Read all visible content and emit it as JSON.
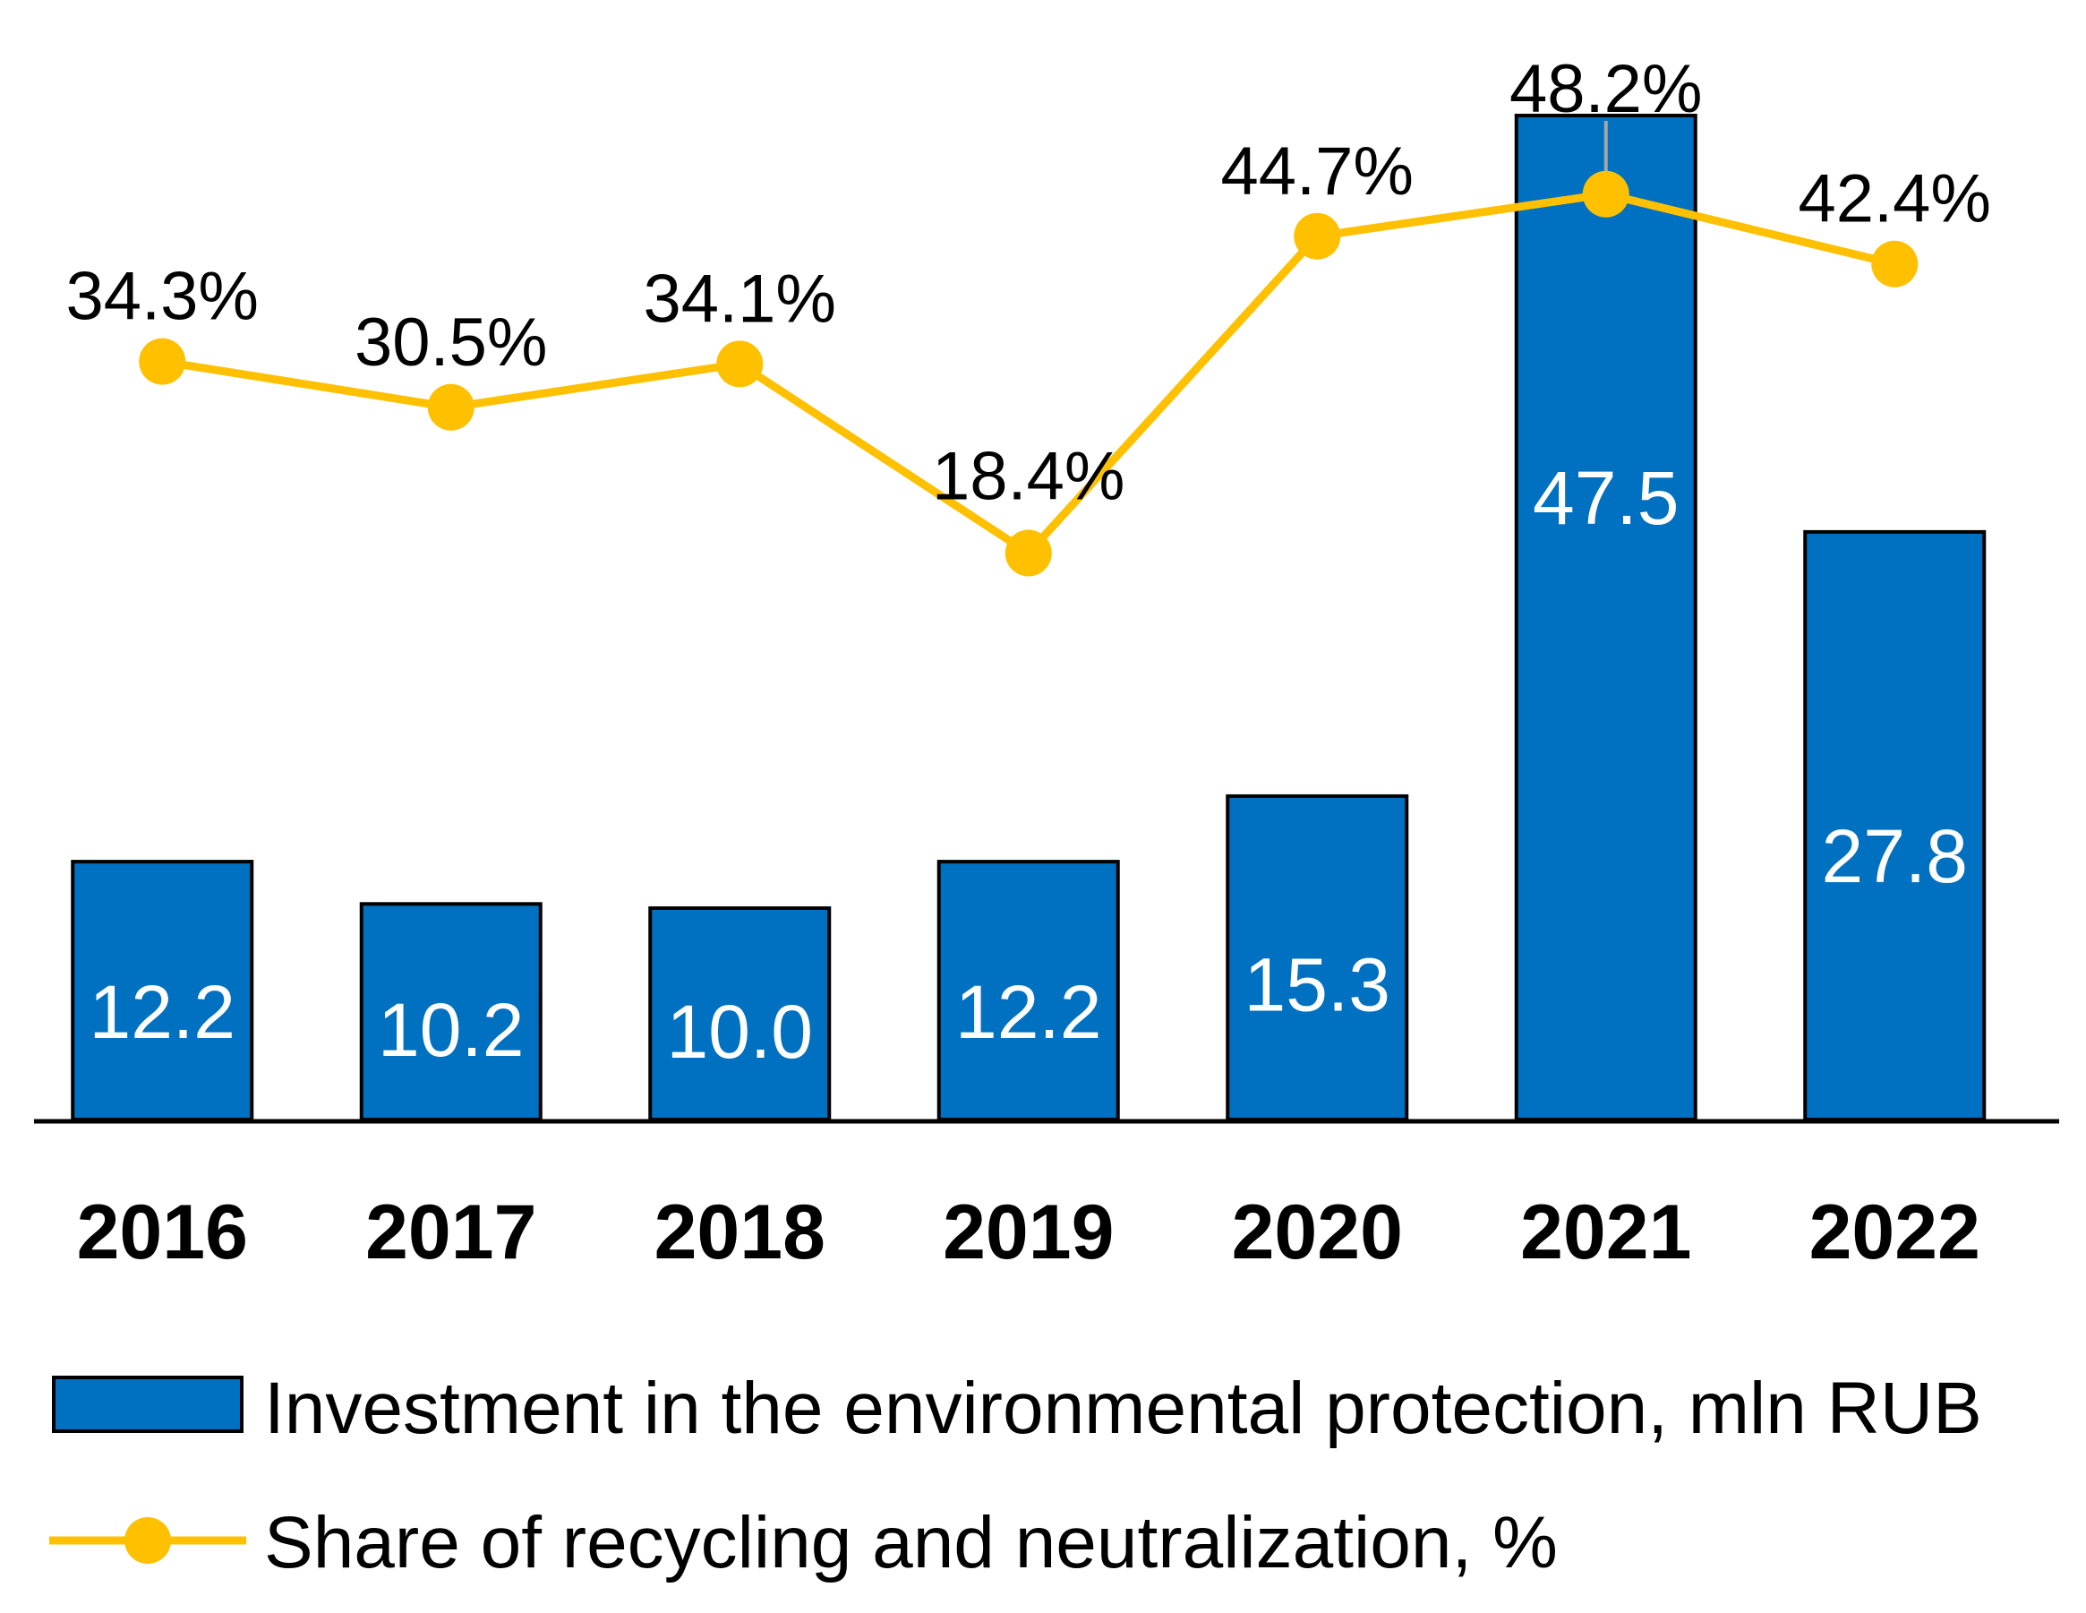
{
  "chart_data": {
    "type": "bar",
    "categories": [
      "2016",
      "2017",
      "2018",
      "2019",
      "2020",
      "2021",
      "2022"
    ],
    "series": [
      {
        "name": "Investment in the environmental protection, mln RUB",
        "kind": "bar",
        "color": "#0070C0",
        "values": [
          12.2,
          10.2,
          10.0,
          12.2,
          15.3,
          47.5,
          27.8
        ],
        "labels": [
          "12.2",
          "10.2",
          "10.0",
          "12.2",
          "15.3",
          "47.5",
          "27.8"
        ]
      },
      {
        "name": "Share of recycling and neutralization, %",
        "kind": "line",
        "color": "#FFC000",
        "values": [
          34.3,
          30.5,
          34.1,
          18.4,
          44.7,
          48.2,
          42.4
        ],
        "labels": [
          "34.3%",
          "30.5%",
          "34.1%",
          "18.4%",
          "44.7%",
          "48.2%",
          "42.4%"
        ]
      }
    ],
    "legend": {
      "position": "bottom",
      "items": [
        "Investment in the environmental protection, mln RUB",
        "Share of recycling and neutralization, %"
      ]
    },
    "grid": false
  }
}
